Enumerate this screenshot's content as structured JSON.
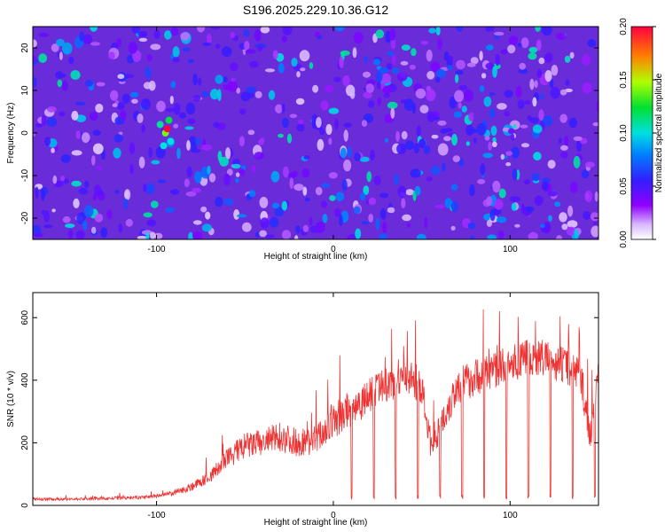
{
  "title": "S196.2025.229.10.36.G12",
  "chart_data": [
    {
      "type": "heatmap",
      "xlabel": "Height of straight line (km)",
      "ylabel": "Frequency (Hz)",
      "xlim": [
        -170,
        150
      ],
      "ylim": [
        -25,
        25
      ],
      "xticks": [
        -100,
        0,
        100
      ],
      "yticks": [
        -20,
        -10,
        0,
        10,
        20
      ],
      "colorbar": {
        "label": "Normalized spectral amplitude",
        "range": [
          0.0,
          0.2
        ],
        "ticks": [
          "0.00",
          "0.05",
          "0.10",
          "0.15",
          "0.20"
        ]
      },
      "hotspot": {
        "x": -95,
        "y": 0,
        "value": 0.2
      }
    },
    {
      "type": "line",
      "xlabel": "Height of straight line (km)",
      "ylabel": "SNR (10 * v/v)",
      "xlim": [
        -170,
        150
      ],
      "ylim": [
        0,
        680
      ],
      "xticks": [
        -100,
        0,
        100
      ],
      "yticks": [
        0,
        200,
        400,
        600
      ],
      "series": [
        {
          "name": "SNR",
          "color": "#ee3333",
          "x": [
            -170,
            -150,
            -130,
            -110,
            -100,
            -90,
            -80,
            -70,
            -60,
            -50,
            -40,
            -30,
            -20,
            -10,
            0,
            10,
            20,
            30,
            40,
            50,
            55,
            60,
            70,
            80,
            90,
            100,
            110,
            120,
            130,
            140,
            145,
            150
          ],
          "y": [
            20,
            20,
            22,
            25,
            30,
            40,
            60,
            90,
            150,
            190,
            200,
            220,
            200,
            210,
            270,
            310,
            350,
            380,
            420,
            380,
            200,
            250,
            380,
            410,
            430,
            450,
            470,
            470,
            450,
            420,
            220,
            420
          ]
        }
      ]
    }
  ]
}
